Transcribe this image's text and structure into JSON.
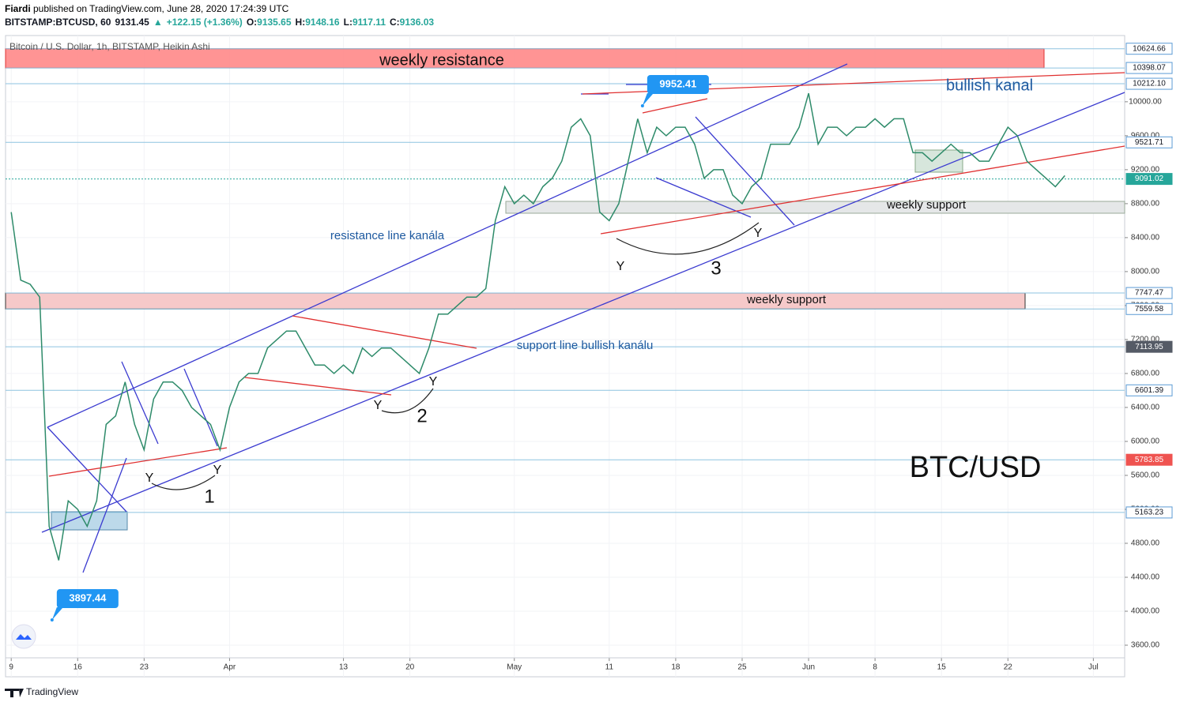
{
  "header": {
    "author": "Fiardi",
    "published": " published on TradingView.com, June 28, 2020 17:24:39 UTC",
    "quote": [
      "BITSTAMP:BTCUSD, 60",
      "9131.45",
      "▲",
      "+122.15 (+1.36%)",
      "O:",
      "9135.65",
      "H:",
      "9148.16",
      "L:",
      "9117.11",
      "C:",
      "9136.03"
    ]
  },
  "footer": "TradingView",
  "chart_data": {
    "type": "line",
    "title": "Bitcoin / U.S. Dollar, 1h, BITSTAMP, Heikin Ashi",
    "x": [
      0,
      1,
      2,
      3,
      4,
      5,
      6,
      7,
      8,
      9,
      10,
      11,
      12,
      13,
      14,
      15,
      16,
      17,
      18,
      19,
      20,
      21,
      22,
      23,
      24,
      25,
      26,
      27,
      28,
      29,
      30,
      31,
      32,
      33,
      34,
      35,
      36,
      37,
      38,
      39,
      40,
      41,
      42,
      43,
      44,
      45,
      46,
      47,
      48,
      49,
      50,
      51,
      52,
      53,
      54,
      55,
      56,
      57,
      58,
      59,
      60,
      61,
      62,
      63,
      64,
      65,
      66,
      67,
      68,
      69,
      70,
      71,
      72,
      73,
      74,
      75,
      76,
      77,
      78,
      79,
      80,
      81,
      82,
      83,
      84,
      85,
      86,
      87,
      88,
      89,
      90,
      91,
      92,
      93,
      94,
      95,
      96,
      97,
      98,
      99,
      100,
      101,
      102,
      103,
      104,
      105,
      106,
      107,
      108,
      109,
      110,
      111
    ],
    "series": [
      {
        "name": "BTCUSD",
        "color": "#2e8b6a",
        "values": [
          8700,
          7900,
          7850,
          7700,
          5000,
          4600,
          5300,
          5200,
          5000,
          5300,
          6200,
          6300,
          6700,
          6200,
          5900,
          6500,
          6700,
          6700,
          6600,
          6400,
          6300,
          6200,
          5900,
          6400,
          6700,
          6800,
          6800,
          7100,
          7200,
          7300,
          7300,
          7100,
          6900,
          6900,
          6800,
          6900,
          6800,
          7100,
          7000,
          7100,
          7100,
          7000,
          6900,
          6800,
          7100,
          7500,
          7500,
          7600,
          7700,
          7700,
          7800,
          8600,
          9000,
          8800,
          8900,
          8800,
          9000,
          9100,
          9300,
          9700,
          9800,
          9600,
          8700,
          8600,
          8800,
          9300,
          9800,
          9400,
          9700,
          9600,
          9700,
          9700,
          9500,
          9100,
          9200,
          9200,
          8900,
          8800,
          9000,
          9100,
          9500,
          9500,
          9500,
          9700,
          10100,
          9500,
          9700,
          9700,
          9600,
          9700,
          9700,
          9800,
          9700,
          9800,
          9800,
          9400,
          9400,
          9300,
          9400,
          9500,
          9400,
          9400,
          9300,
          9300,
          9500,
          9700,
          9600,
          9300,
          9200,
          9100,
          9000,
          9130
        ]
      }
    ],
    "xlim": [
      -0.6,
      117.3
    ],
    "xticks": [
      {
        "value": 0,
        "label": "9"
      },
      {
        "value": 7,
        "label": "16"
      },
      {
        "value": 14,
        "label": "23"
      },
      {
        "value": 23,
        "label": "Apr"
      },
      {
        "value": 35,
        "label": "13"
      },
      {
        "value": 42,
        "label": "20"
      },
      {
        "value": 53,
        "label": "May"
      },
      {
        "value": 63,
        "label": "11"
      },
      {
        "value": 70,
        "label": "18"
      },
      {
        "value": 77,
        "label": "25"
      },
      {
        "value": 84,
        "label": "Jun"
      },
      {
        "value": 91,
        "label": "8"
      },
      {
        "value": 98,
        "label": "15"
      },
      {
        "value": 105,
        "label": "22"
      },
      {
        "value": 114,
        "label": "Jul"
      }
    ],
    "ylim": [
      3228,
      10780
    ],
    "yticks": [
      {
        "value": 3600,
        "label": "3600.00"
      },
      {
        "value": 4000,
        "label": "4000.00"
      },
      {
        "value": 4400,
        "label": "4400.00"
      },
      {
        "value": 4800,
        "label": "4800.00"
      },
      {
        "value": 5200,
        "label": "5200.00"
      },
      {
        "value": 5600,
        "label": "5600.00"
      },
      {
        "value": 6000,
        "label": "6000.00"
      },
      {
        "value": 6400,
        "label": "6400.00"
      },
      {
        "value": 6800,
        "label": "6800.00"
      },
      {
        "value": 7200,
        "label": "7200.00"
      },
      {
        "value": 7600,
        "label": "7600.00"
      },
      {
        "value": 8000,
        "label": "8000.00"
      },
      {
        "value": 8400,
        "label": "8400.00"
      },
      {
        "value": 8800,
        "label": "8800.00"
      },
      {
        "value": 9200,
        "label": "9200.00"
      },
      {
        "value": 9600,
        "label": "9600.00"
      },
      {
        "value": 10000,
        "label": "10000.00"
      }
    ],
    "levels": [
      10624.66,
      10398.07,
      {
        "value": 10212.1,
        "label": "10212.10"
      },
      9521.71,
      9091.02,
      7747.47,
      7559.58,
      7113.95,
      6601.39,
      5783.85,
      5163.23
    ],
    "level_colors": [
      "#ffffff",
      "#ffffff",
      "#ffffff",
      "#ffffff",
      "#26a69a",
      "#ffffff",
      "#ffffff",
      "#555b66",
      "#ffffff",
      "#ef5350",
      "#ffffff"
    ],
    "callouts": [
      {
        "x": 66.5,
        "value": 9952.41
      },
      {
        "x": 4.3,
        "value": 3897.44
      }
    ],
    "annotations": [
      "weekly resistance",
      "bullish kanal",
      "resistance line kanála",
      "weekly support",
      "weekly support",
      "support line bullish kanálu",
      "BTC/USD",
      "Y",
      "Y",
      "1",
      "Y",
      "Y",
      "2",
      "Y",
      "Y",
      "3"
    ]
  }
}
